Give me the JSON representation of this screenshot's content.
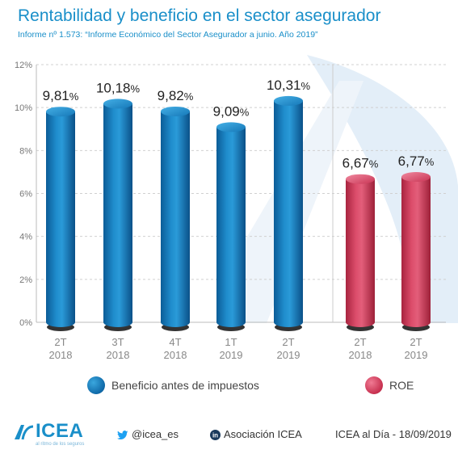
{
  "title": "Rentabilidad y beneficio en el sector asegurador",
  "subtitle": "Informe nº 1.573: “Informe Económico del Sector Asegurador a junio. Año 2019”",
  "chart_data": {
    "type": "bar",
    "ylim": [
      0,
      12
    ],
    "yticks": [
      "0%",
      "2%",
      "4%",
      "6%",
      "8%",
      "10%",
      "12%"
    ],
    "grid": true,
    "series": [
      {
        "name": "Beneficio antes de impuestos",
        "color": "#1377b8",
        "categories": [
          [
            "2T",
            "2018"
          ],
          [
            "3T",
            "2018"
          ],
          [
            "4T",
            "2018"
          ],
          [
            "1T",
            "2019"
          ],
          [
            "2T",
            "2019"
          ]
        ],
        "values": [
          9.81,
          10.18,
          9.82,
          9.09,
          10.31
        ],
        "labels": [
          "9,81",
          "10,18",
          "9,82",
          "9,09",
          "10,31"
        ]
      },
      {
        "name": "ROE",
        "color": "#d43c5c",
        "categories": [
          [
            "2T",
            "2018"
          ],
          [
            "2T",
            "2019"
          ]
        ],
        "values": [
          6.67,
          6.77
        ],
        "labels": [
          "6,67",
          "6,77"
        ]
      }
    ],
    "value_suffix": "%"
  },
  "legend": {
    "blue_label": "Beneficio antes de impuestos",
    "red_label": "ROE"
  },
  "footer": {
    "logo": "ICEA",
    "logo_sub": "al ritmo de los seguros",
    "twitter": "@icea_es",
    "linkedin": "Asociación ICEA",
    "date": "ICEA al Día - 18/09/2019"
  },
  "colors": {
    "accent": "#1a8fc9",
    "bar_blue": "#1377b8",
    "bar_red": "#d43c5c"
  }
}
